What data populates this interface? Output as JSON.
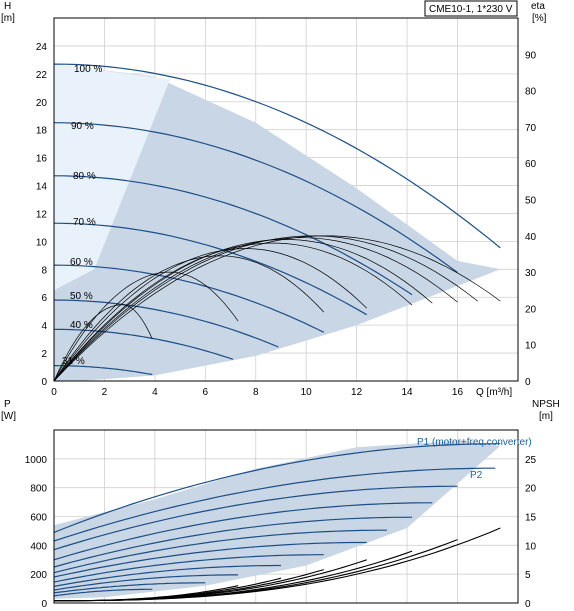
{
  "chart_data": [
    {
      "type": "line",
      "title": "CME10-1, 1*230 V",
      "xlabel": "Q [m³/h]",
      "ylabel": "H",
      "ylabel_unit": "[m]",
      "y2label": "eta",
      "y2label_unit": "[%]",
      "xlim": [
        0,
        18.4
      ],
      "ylim": [
        0,
        26
      ],
      "y2lim": [
        0,
        100
      ],
      "x_ticks": [
        0,
        2,
        4,
        6,
        8,
        10,
        12,
        14,
        16
      ],
      "y_ticks": [
        0,
        2,
        4,
        6,
        8,
        10,
        12,
        14,
        16,
        18,
        20,
        22,
        24
      ],
      "y2_ticks": [
        0,
        10,
        20,
        30,
        40,
        50,
        60,
        70,
        80,
        90
      ],
      "grid": true,
      "head_curves": [
        {
          "name": "100 %",
          "speed": 1.0,
          "h0": 22.7,
          "qmax": 17.7
        },
        {
          "name": "90 %",
          "speed": 0.9,
          "h0": 18.5,
          "qmax": 16.0
        },
        {
          "name": "80 %",
          "speed": 0.8,
          "h0": 14.7,
          "qmax": 14.2
        },
        {
          "name": "70 %",
          "speed": 0.7,
          "h0": 11.3,
          "qmax": 12.4
        },
        {
          "name": "60 %",
          "speed": 0.6,
          "h0": 8.3,
          "qmax": 10.7
        },
        {
          "name": "50 %",
          "speed": 0.5,
          "h0": 5.8,
          "qmax": 8.9
        },
        {
          "name": "40 %",
          "speed": 0.4,
          "h0": 3.7,
          "qmax": 7.1
        },
        {
          "name": "31 %",
          "speed": 0.31,
          "h0": 1.1,
          "qmax": 3.9
        }
      ],
      "operating_area": [
        [
          0,
          22.7
        ],
        [
          4,
          21.8
        ],
        [
          8,
          18.5
        ],
        [
          12,
          13.8
        ],
        [
          16,
          8.6
        ],
        [
          17.7,
          8.0
        ],
        [
          12,
          4.0
        ],
        [
          8,
          1.8
        ],
        [
          4,
          0.4
        ],
        [
          1,
          0
        ],
        [
          0,
          0
        ]
      ],
      "eta_curves": [
        {
          "qmax": 17.7,
          "peak_q": 10.8,
          "peak": 40
        },
        {
          "qmax": 16.8,
          "peak_q": 10.3,
          "peak": 40
        },
        {
          "qmax": 16.0,
          "peak_q": 9.8,
          "peak": 39.5
        },
        {
          "qmax": 15.0,
          "peak_q": 9.2,
          "peak": 39
        },
        {
          "qmax": 14.2,
          "peak_q": 8.7,
          "peak": 38
        },
        {
          "qmax": 12.4,
          "peak_q": 7.6,
          "peak": 36.5
        },
        {
          "qmax": 10.7,
          "peak_q": 6.6,
          "peak": 34.5
        },
        {
          "qmax": 7.3,
          "peak_q": 4.6,
          "peak": 30
        },
        {
          "qmax": 3.9,
          "peak_q": 2.7,
          "peak": 21
        }
      ]
    },
    {
      "type": "line",
      "ylabel": "P",
      "ylabel_unit": "[W]",
      "y2label": "NPSH",
      "y2label_unit": "[m]",
      "xlim": [
        0,
        18.4
      ],
      "ylim": [
        0,
        1200
      ],
      "y2lim": [
        0,
        30
      ],
      "y_ticks": [
        0,
        200,
        400,
        600,
        800,
        1000
      ],
      "y2_ticks": [
        0,
        5,
        10,
        15,
        20,
        25
      ],
      "grid": true,
      "series_labels": [
        "P1 (motor+freq.converter)",
        "P2"
      ],
      "operating_area": [
        [
          0,
          540
        ],
        [
          4,
          720
        ],
        [
          8,
          930
        ],
        [
          12,
          1080
        ],
        [
          16,
          1125
        ],
        [
          17.7,
          1090
        ],
        [
          14,
          520
        ],
        [
          10,
          260
        ],
        [
          6,
          120
        ],
        [
          2,
          40
        ],
        [
          0,
          30
        ]
      ],
      "power_curves": [
        {
          "p0": 490,
          "p1": 1105,
          "qmax": 17.7
        },
        {
          "p0": 430,
          "p1": 935,
          "qmax": 17.5
        },
        {
          "p0": 370,
          "p1": 810,
          "qmax": 16.0
        },
        {
          "p0": 300,
          "p1": 695,
          "qmax": 15.0
        },
        {
          "p0": 250,
          "p1": 595,
          "qmax": 14.2
        },
        {
          "p0": 210,
          "p1": 505,
          "qmax": 13.2
        },
        {
          "p0": 180,
          "p1": 420,
          "qmax": 12.4
        },
        {
          "p0": 145,
          "p1": 335,
          "qmax": 10.7
        },
        {
          "p0": 115,
          "p1": 260,
          "qmax": 9.0
        },
        {
          "p0": 90,
          "p1": 195,
          "qmax": 7.3
        },
        {
          "p0": 70,
          "p1": 140,
          "qmax": 6.0
        },
        {
          "p0": 50,
          "p1": 95,
          "qmax": 3.9
        }
      ],
      "npsh_curves": [
        {
          "qmax": 17.7,
          "npsh": 13
        },
        {
          "qmax": 16.0,
          "npsh": 11
        },
        {
          "qmax": 14.2,
          "npsh": 9
        },
        {
          "qmax": 12.4,
          "npsh": 7.5
        },
        {
          "qmax": 10.7,
          "npsh": 5.8
        },
        {
          "qmax": 9.0,
          "npsh": 4.3
        },
        {
          "qmax": 7.3,
          "npsh": 3
        }
      ]
    }
  ]
}
